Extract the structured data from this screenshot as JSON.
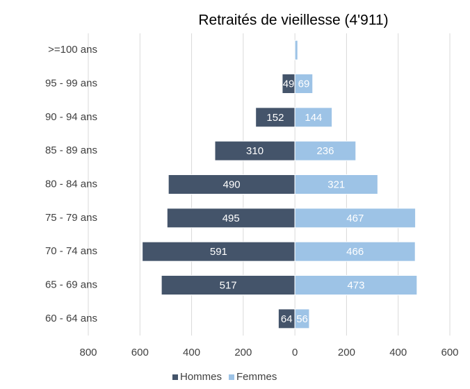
{
  "chart_data": {
    "type": "bar",
    "orientation": "horizontal",
    "title": "Retraités de vieillesse (4'911)",
    "categories": [
      ">=100 ans",
      "95 - 99 ans",
      "90 - 94 ans",
      "85 - 89 ans",
      "80 - 84 ans",
      "75 - 79 ans",
      "70 - 74 ans",
      "65 - 69 ans",
      "60 - 64 ans"
    ],
    "series": [
      {
        "name": "Hommes",
        "color": "#44546a",
        "values": [
          0,
          -49,
          -152,
          -310,
          -490,
          -495,
          -591,
          -517,
          -64
        ],
        "value_labels": [
          null,
          "49",
          "152",
          "310",
          "490",
          "495",
          "591",
          "517",
          "64"
        ]
      },
      {
        "name": "Femmes",
        "color": "#9dc3e6",
        "values": [
          11,
          69,
          144,
          236,
          321,
          467,
          466,
          473,
          56
        ],
        "value_labels": [
          null,
          "69",
          "144",
          "236",
          "321",
          "467",
          "466",
          "473",
          "56"
        ]
      }
    ],
    "xlim": [
      -800,
      600
    ],
    "xticks": [
      {
        "value": -800,
        "label": "800"
      },
      {
        "value": -600,
        "label": "600"
      },
      {
        "value": -400,
        "label": "400"
      },
      {
        "value": -200,
        "label": "200"
      },
      0,
      200,
      400,
      600
    ],
    "grid": true,
    "legend": "bottom"
  }
}
